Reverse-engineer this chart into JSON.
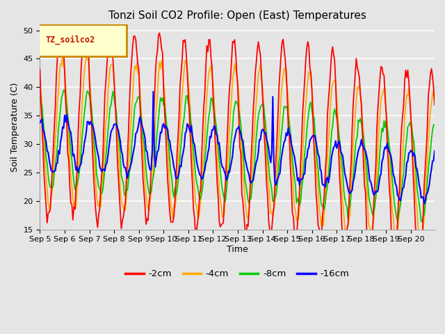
{
  "title": "Tonzi Soil CO2 Profile: Open (East) Temperatures",
  "ylabel": "Soil Temperature (C)",
  "xlabel": "Time",
  "ylim": [
    15,
    51
  ],
  "yticks": [
    15,
    20,
    25,
    30,
    35,
    40,
    45,
    50
  ],
  "legend_label": "TZ_soilco2",
  "series_labels": [
    "-2cm",
    "-4cm",
    "-8cm",
    "-16cm"
  ],
  "series_colors": [
    "#ff0000",
    "#ffaa00",
    "#00cc00",
    "#0000ff"
  ],
  "background_color": "#e5e5e5",
  "axes_bg_color": "#e5e5e5",
  "grid_color": "#ffffff",
  "x_tick_labels": [
    "Sep 5",
    "Sep 6",
    "Sep 7",
    "Sep 8",
    "Sep 9",
    "Sep 10",
    "Sep 11",
    "Sep 12",
    "Sep 13",
    "Sep 14",
    "Sep 15",
    "Sep 16",
    "Sep 17",
    "Sep 18",
    "Sep 19",
    "Sep 20"
  ],
  "n_per_day": 24,
  "n_days": 16,
  "figsize": [
    6.4,
    4.8
  ],
  "dpi": 100
}
